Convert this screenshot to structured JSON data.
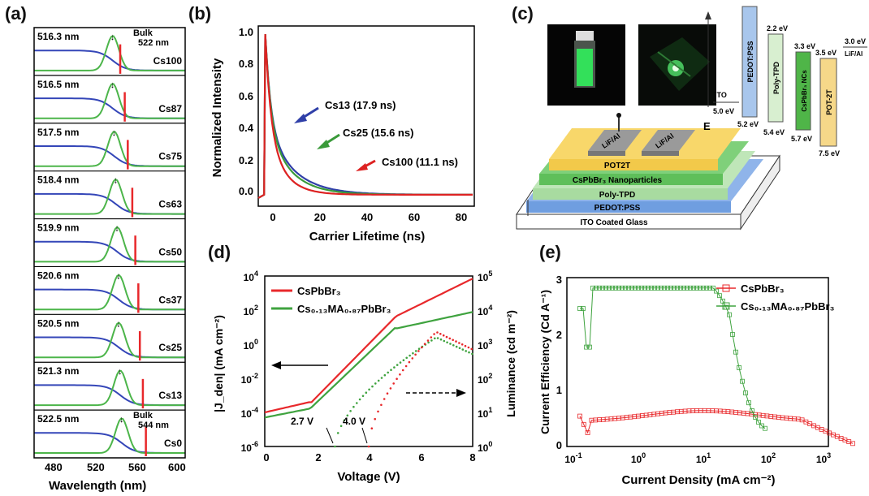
{
  "panels": {
    "a": {
      "letter": "(a)",
      "xlabel": "Wavelength (nm)",
      "xticks": [
        "480",
        "520",
        "560",
        "600"
      ],
      "rows": [
        {
          "name": "Cs100",
          "peak": "516.3 nm",
          "extra": "Bulk",
          "extra2": "522 nm",
          "pos": 0.52,
          "red": 0.57
        },
        {
          "name": "Cs87",
          "peak": "516.5 nm",
          "pos": 0.52,
          "red": 0.6
        },
        {
          "name": "Cs75",
          "peak": "517.5 nm",
          "pos": 0.53,
          "red": 0.62
        },
        {
          "name": "Cs63",
          "peak": "518.4 nm",
          "pos": 0.54,
          "red": 0.65
        },
        {
          "name": "Cs50",
          "peak": "519.9 nm",
          "pos": 0.55,
          "red": 0.67
        },
        {
          "name": "Cs37",
          "peak": "520.6 nm",
          "pos": 0.56,
          "red": 0.69
        },
        {
          "name": "Cs25",
          "peak": "520.5 nm",
          "pos": 0.56,
          "red": 0.7
        },
        {
          "name": "Cs13",
          "peak": "521.3 nm",
          "pos": 0.57,
          "red": 0.72
        },
        {
          "name": "Cs0",
          "peak": "522.5 nm",
          "extra": "Bulk",
          "extra2": "544 nm",
          "pos": 0.58,
          "red": 0.74
        }
      ]
    },
    "b": {
      "letter": "(b)",
      "xlabel": "Carrier Lifetime (ns)",
      "ylabel": "Normalized Intensity",
      "xticks": [
        "0",
        "20",
        "40",
        "60",
        "80"
      ],
      "yticks": [
        "0.0",
        "0.2",
        "0.4",
        "0.6",
        "0.8",
        "1.0"
      ],
      "annotations": [
        "Cs13 (17.9 ns)",
        "Cs25 (15.6 ns)",
        "Cs100 (11.1 ns)"
      ],
      "chart_data": {
        "type": "line",
        "xlim": [
          -3,
          90
        ],
        "ylim": [
          -0.05,
          1.05
        ],
        "series": [
          {
            "name": "Cs13",
            "tau": 17.9,
            "color": "#2f3fa8"
          },
          {
            "name": "Cs25",
            "tau": 15.6,
            "color": "#3a9a3a"
          },
          {
            "name": "Cs100",
            "tau": 11.1,
            "color": "#d22"
          }
        ]
      }
    },
    "c": {
      "letter": "(c)",
      "device_layers": [
        "ITO Coated Glass",
        "PEDOT:PSS",
        "Poly-TPD",
        "CsPbBr₃ Nanoparticles",
        "POT2T"
      ],
      "electrodes": [
        "LiF/Al",
        "LiF/Al"
      ],
      "markers": [
        "E"
      ],
      "energy": {
        "ito": {
          "label": "ITO",
          "level": "5.0 eV"
        },
        "pedot": {
          "label": "PEDOT:PSS",
          "level": "5.2 eV"
        },
        "polytpd": {
          "label": "Poly-TPD",
          "top": "2.2 eV",
          "bottom": "5.4 eV"
        },
        "nc": {
          "label": "CsPbBr₃ NCs",
          "top": "3.3 eV",
          "bottom": "5.7 eV"
        },
        "pot": {
          "label": "POT-2T",
          "top": "3.5 eV",
          "bottom": "7.5 eV"
        },
        "lif": {
          "label": "LiF/Al",
          "level": "3.0 eV"
        }
      }
    },
    "d": {
      "letter": "(d)",
      "xlabel": "Voltage (V)",
      "ylabel_left": "|J_den| (mA cm⁻²)",
      "ylabel_right": "Luminance (cd m⁻²)",
      "xticks": [
        "0",
        "2",
        "4",
        "6",
        "8"
      ],
      "legend": [
        "CsPbBr₃",
        "Cs₀.₁₃MA₀.₈₇PbBr₃"
      ],
      "annotations": [
        "2.7 V",
        "4.0 V"
      ]
    },
    "e": {
      "letter": "(e)",
      "xlabel": "Current Density (mA cm⁻²)",
      "ylabel": "Current Efficiency (Cd A⁻¹)",
      "yticks": [
        "0",
        "1",
        "2",
        "3"
      ],
      "legend": [
        "CsPbBr₃",
        "Cs₀.₁₃MA₀.₈₇PbBr₃"
      ]
    }
  }
}
